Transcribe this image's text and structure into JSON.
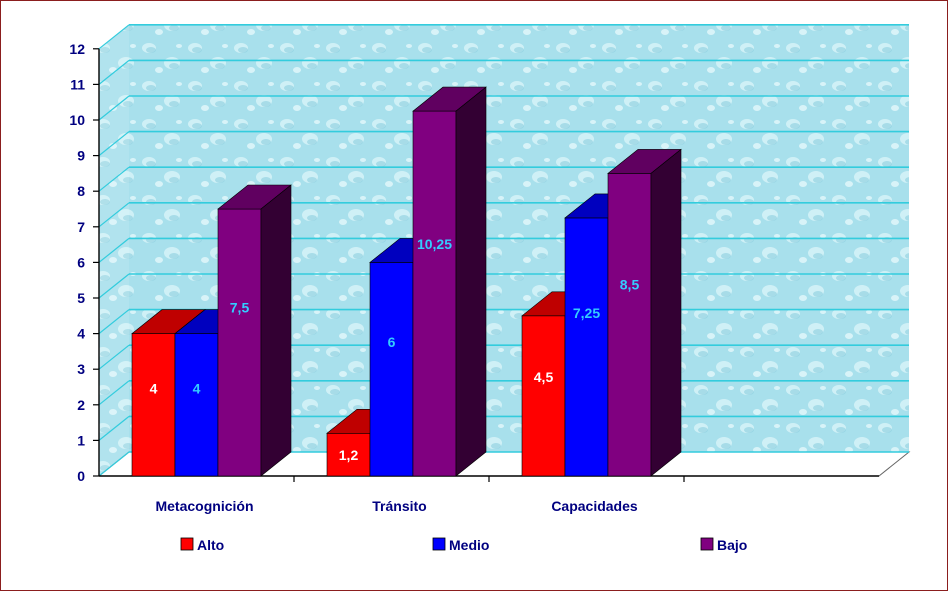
{
  "chart_data": {
    "type": "bar",
    "title": "",
    "xlabel": "",
    "ylabel": "",
    "ylim": [
      0,
      12
    ],
    "yticks": [
      0,
      1,
      2,
      3,
      4,
      5,
      6,
      7,
      8,
      9,
      10,
      11,
      12
    ],
    "categories": [
      "Metacognición",
      "Tránsito",
      "Capacidades",
      ""
    ],
    "series": [
      {
        "name": "Alto",
        "values": [
          4,
          1.2,
          4.5,
          null
        ],
        "labels": [
          "4",
          "1,2",
          "4,5",
          ""
        ],
        "color": "#ff0000",
        "label_color": "#ffffff"
      },
      {
        "name": "Medio",
        "values": [
          4,
          6,
          7.25,
          null
        ],
        "labels": [
          "4",
          "6",
          "7,25",
          ""
        ],
        "color": "#0000ff",
        "label_color": "#33ccff"
      },
      {
        "name": "Bajo",
        "values": [
          7.5,
          10.25,
          8.5,
          null
        ],
        "labels": [
          "7,5",
          "10,25",
          "8,5",
          ""
        ],
        "color": "#800080",
        "label_color": "#33ccff"
      }
    ],
    "grid": true,
    "three_d": true,
    "legend_position": "bottom",
    "colors": {
      "gridline": "#33ccdd",
      "axis": "#000000",
      "text": "#000080",
      "frame": "#8b1e1e",
      "wall": "#a9e2ee"
    }
  }
}
